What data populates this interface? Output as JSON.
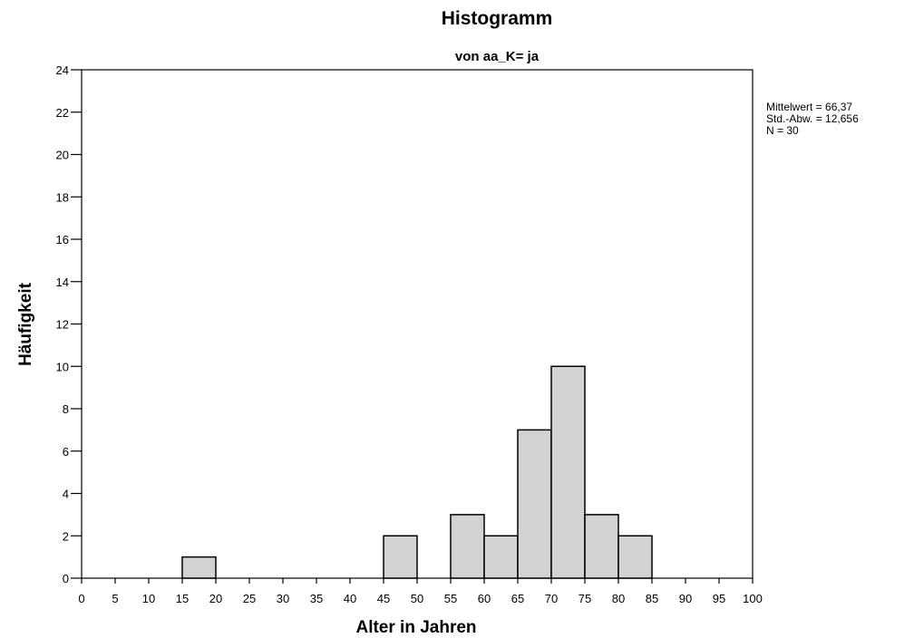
{
  "chart_data": {
    "type": "bar",
    "title": "Histogramm",
    "subtitle": "von aa_K= ja",
    "xlabel": "Alter in Jahren",
    "ylabel": "Häufigkeit",
    "xlim": [
      0,
      100
    ],
    "ylim": [
      0,
      24
    ],
    "x_ticks": [
      0,
      5,
      10,
      15,
      20,
      25,
      30,
      35,
      40,
      45,
      50,
      55,
      60,
      65,
      70,
      75,
      80,
      85,
      90,
      95,
      100
    ],
    "y_ticks": [
      0,
      2,
      4,
      6,
      8,
      10,
      12,
      14,
      16,
      18,
      20,
      22,
      24
    ],
    "bins": [
      {
        "from": 15,
        "to": 20,
        "count": 1
      },
      {
        "from": 45,
        "to": 50,
        "count": 2
      },
      {
        "from": 55,
        "to": 60,
        "count": 3
      },
      {
        "from": 60,
        "to": 65,
        "count": 2
      },
      {
        "from": 65,
        "to": 70,
        "count": 7
      },
      {
        "from": 70,
        "to": 75,
        "count": 10
      },
      {
        "from": 75,
        "to": 80,
        "count": 3
      },
      {
        "from": 80,
        "to": 85,
        "count": 2
      }
    ],
    "bar_color": "#d3d3d3",
    "bar_stroke": "#000000",
    "grid": false,
    "stats": {
      "mean": "Mittelwert = 66,37",
      "std": "Std.-Abw. = 12,656",
      "n": "N = 30"
    }
  }
}
